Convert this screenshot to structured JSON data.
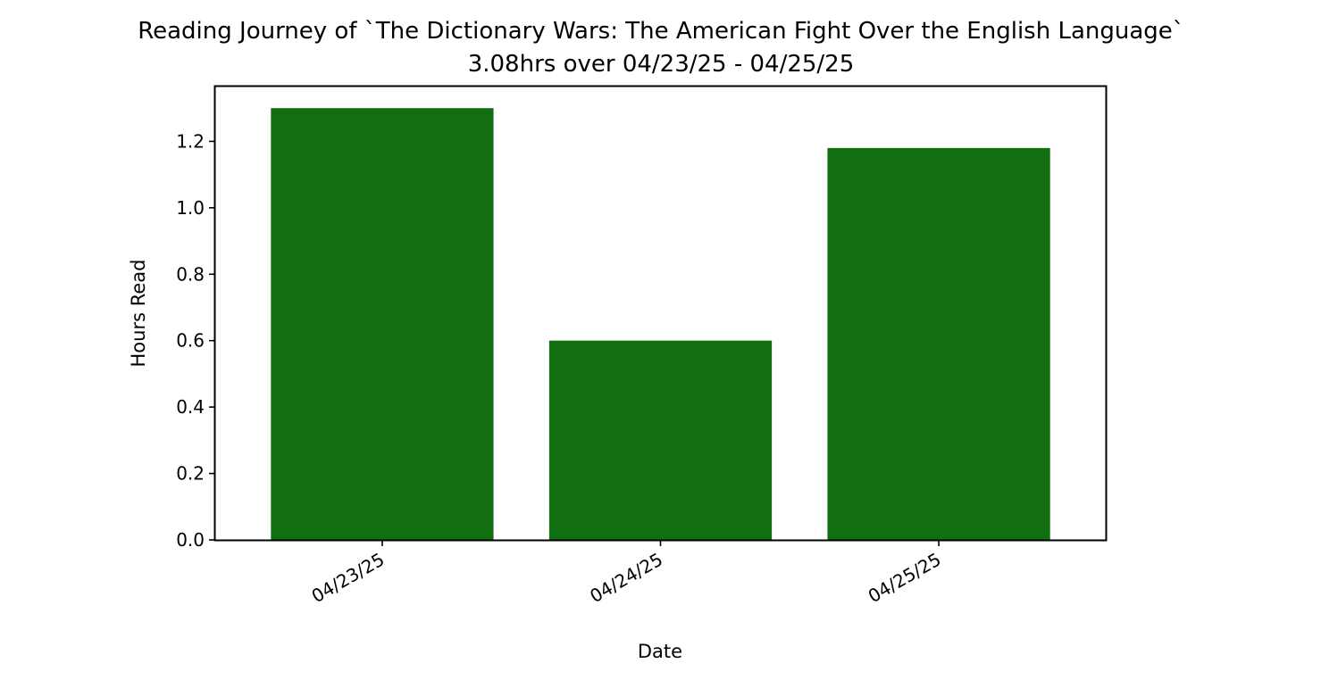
{
  "chart_data": {
    "type": "bar",
    "title": "Reading Journey of `The Dictionary Wars: The American Fight Over the English Language`",
    "subtitle": "3.08hrs over 04/23/25 - 04/25/25",
    "xlabel": "Date",
    "ylabel": "Hours Read",
    "categories": [
      "04/23/25",
      "04/24/25",
      "04/25/25"
    ],
    "values": [
      1.3,
      0.6,
      1.18
    ],
    "ylim": [
      0,
      1.365
    ],
    "yticks": [
      0.0,
      0.2,
      0.4,
      0.6,
      0.8,
      1.0,
      1.2
    ],
    "ytick_labels": [
      "0.0",
      "0.2",
      "0.4",
      "0.6",
      "0.8",
      "1.0",
      "1.2"
    ],
    "bar_color": "#116e11",
    "grid": false,
    "legend": "none",
    "x_tick_rotation_deg": 30
  }
}
